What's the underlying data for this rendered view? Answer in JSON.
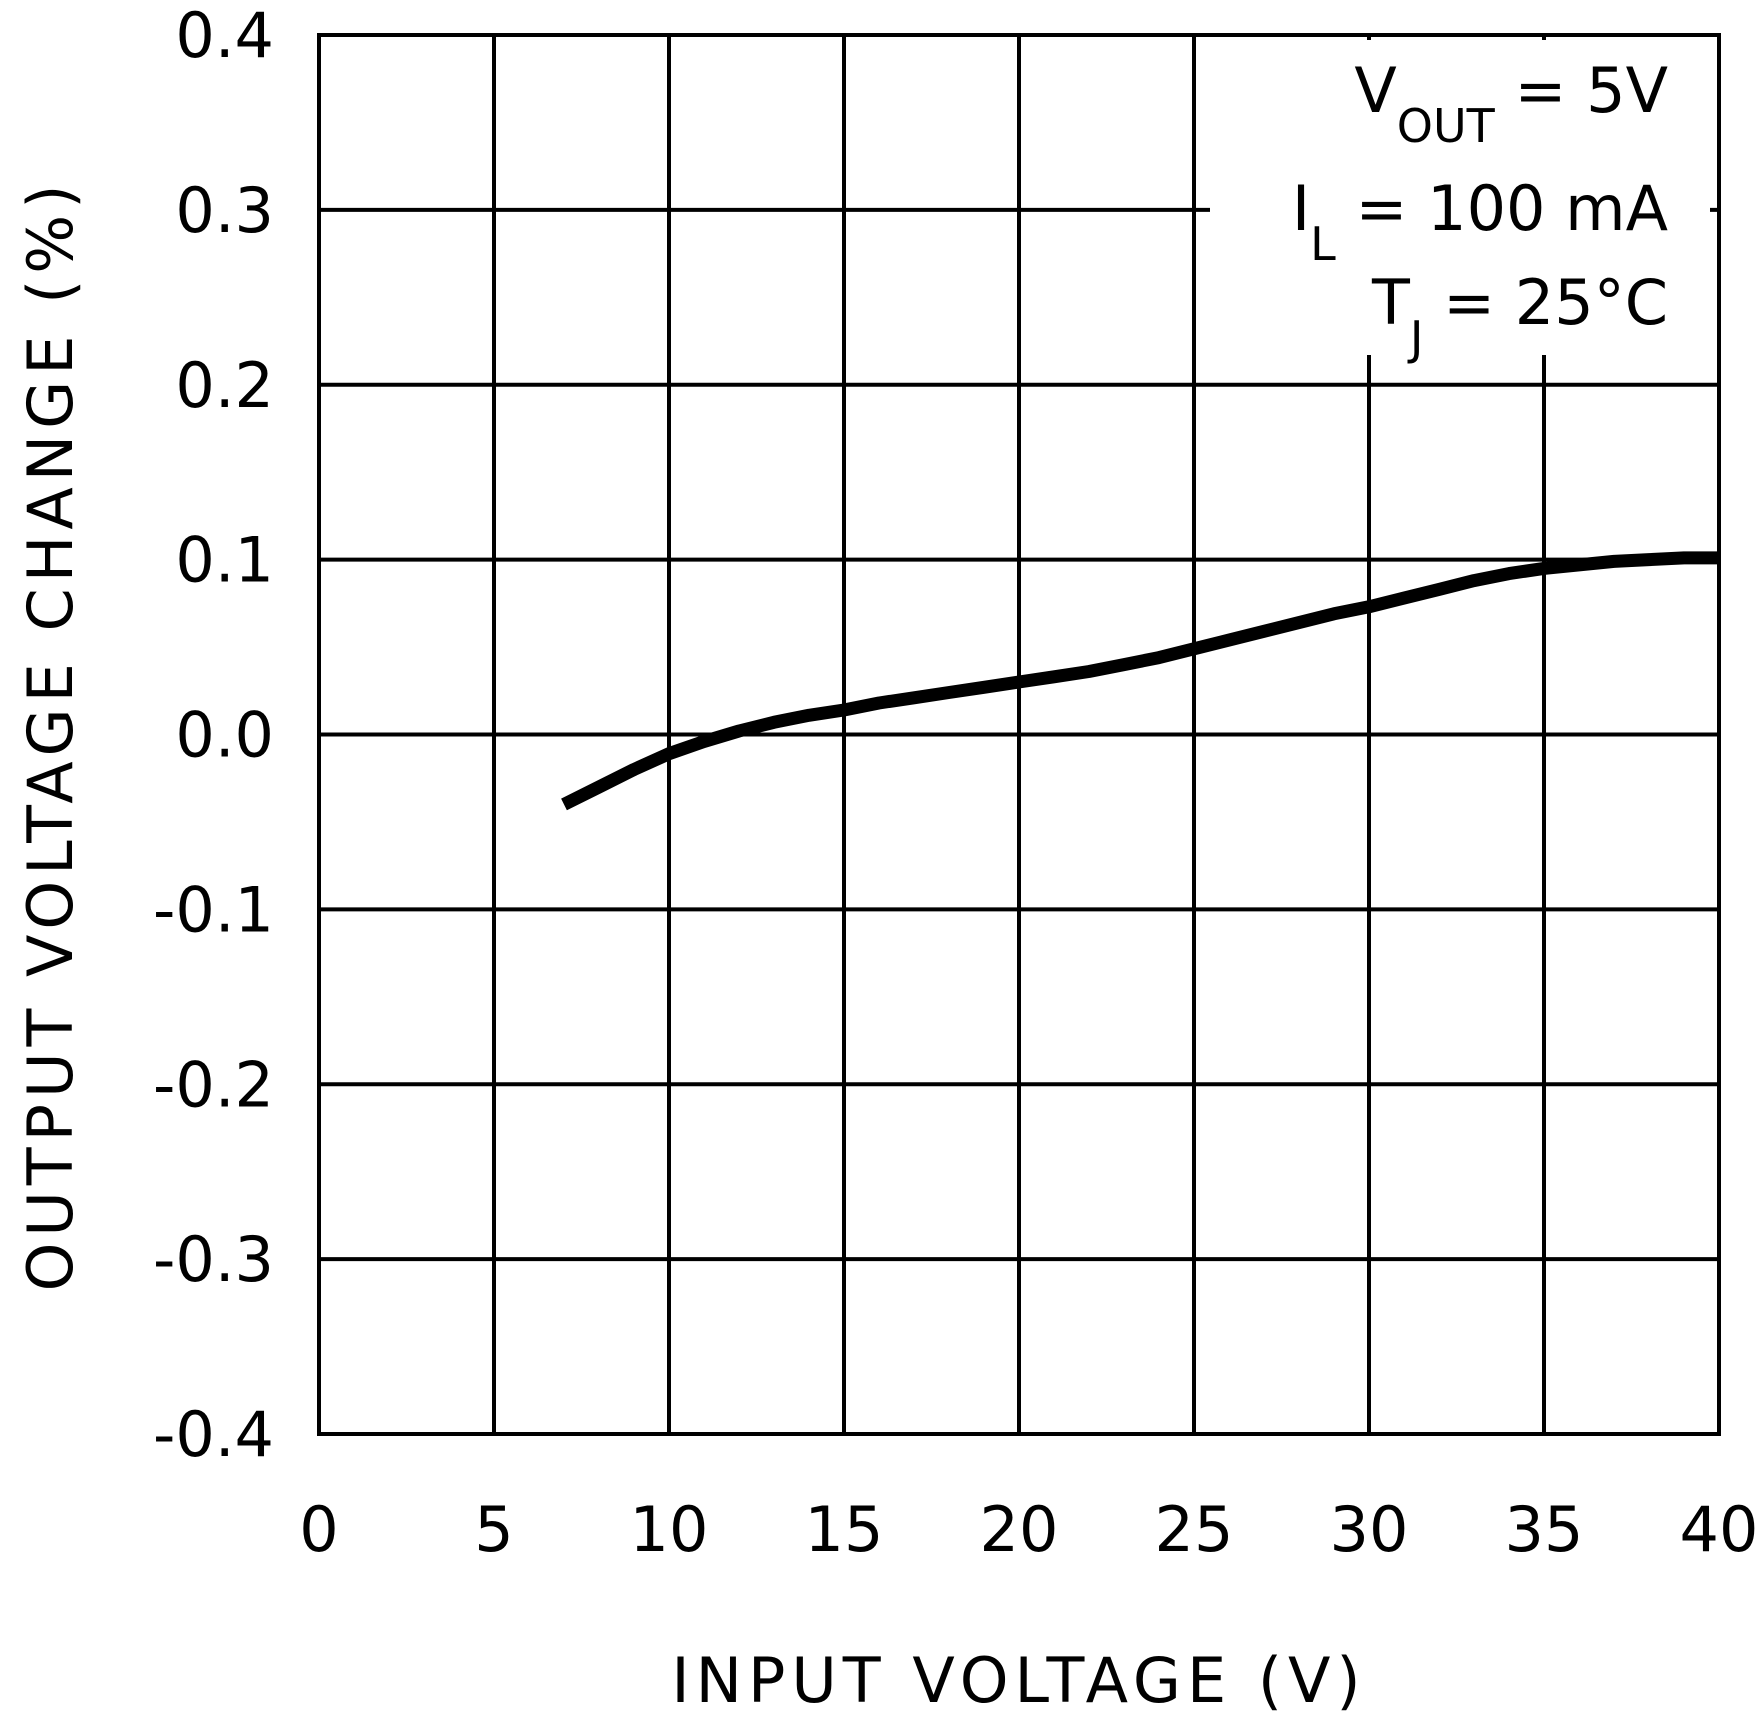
{
  "chart_data": {
    "type": "line",
    "xlabel": "INPUT VOLTAGE (V)",
    "ylabel": "OUTPUT VOLTAGE CHANGE (%)",
    "xlim": [
      0,
      40
    ],
    "ylim": [
      -0.4,
      0.4
    ],
    "x_ticks": [
      0,
      5,
      10,
      15,
      20,
      25,
      30,
      35,
      40
    ],
    "x_tick_labels": [
      "0",
      "5",
      "10",
      "15",
      "20",
      "25",
      "30",
      "35",
      "40"
    ],
    "y_ticks": [
      0.4,
      0.3,
      0.2,
      0.1,
      0.0,
      -0.1,
      -0.2,
      -0.3,
      -0.4
    ],
    "y_tick_labels": [
      "0.4",
      "0.3",
      "0.2",
      "0.1",
      "0.0",
      "-0.1",
      "-0.2",
      "-0.3",
      "-0.4"
    ],
    "grid": true,
    "legend": "none",
    "annotations": [
      {
        "main": "V",
        "sub": "OUT",
        "rest": " = 5V"
      },
      {
        "main": "I",
        "sub": "L",
        "rest": " = 100 mA"
      },
      {
        "main": "T",
        "sub": "J",
        "rest": " = 25°C"
      }
    ],
    "series": [
      {
        "x": [
          7,
          8,
          9,
          10,
          11,
          12,
          13,
          14,
          15,
          16,
          17,
          18,
          19,
          20,
          21,
          22,
          23,
          24,
          25,
          26,
          27,
          28,
          29,
          30,
          31,
          32,
          33,
          34,
          35,
          36,
          37,
          38,
          39,
          40
        ],
        "values": [
          -0.04,
          -0.03,
          -0.02,
          -0.011,
          -0.004,
          0.002,
          0.007,
          0.011,
          0.014,
          0.018,
          0.021,
          0.024,
          0.027,
          0.03,
          0.033,
          0.036,
          0.04,
          0.044,
          0.049,
          0.054,
          0.059,
          0.064,
          0.069,
          0.073,
          0.078,
          0.083,
          0.088,
          0.092,
          0.095,
          0.097,
          0.099,
          0.1,
          0.101,
          0.101
        ]
      }
    ]
  }
}
